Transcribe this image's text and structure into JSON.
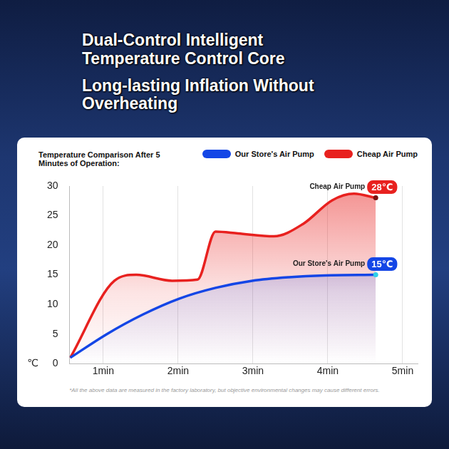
{
  "headline": [
    "Dual-Control Intelligent Temperature Control Core",
    "Long-lasting Inflation Without Overheating"
  ],
  "chart_data": {
    "type": "line",
    "title": "Temperature Comparison After 5 Minutes of Operation:",
    "y_label": "℃",
    "xlim": [
      0.55,
      5.2
    ],
    "xticks": [
      {
        "value": 1,
        "label": "1min"
      },
      {
        "value": 2,
        "label": "2min"
      },
      {
        "value": 3,
        "label": "3min"
      },
      {
        "value": 4,
        "label": "4min"
      },
      {
        "value": 5,
        "label": "5min"
      }
    ],
    "ylim": [
      0,
      30
    ],
    "yticks": [
      0,
      5,
      10,
      15,
      20,
      25,
      30
    ],
    "grid": "x",
    "legend": "top-right",
    "marker": "none",
    "series": [
      {
        "name": "Our Store's Air Pump",
        "color": "#1446e6",
        "x": [
          0.56,
          1.05,
          1.53,
          2.02,
          2.5,
          2.99,
          3.48,
          3.96,
          4.64
        ],
        "values": [
          1,
          5,
          8.3,
          11,
          12.8,
          14,
          14.6,
          14.9,
          15
        ],
        "end_label": "15℃"
      },
      {
        "name": "Cheap Air Pump",
        "color": "#e8211f",
        "x": [
          0.56,
          1.15,
          1.44,
          1.92,
          2.26,
          2.5,
          2.8,
          3.28,
          3.67,
          4.06,
          4.35,
          4.64
        ],
        "values": [
          1,
          14,
          15,
          14,
          14.2,
          22.3,
          22,
          21.5,
          23.6,
          27.6,
          28.7,
          28
        ],
        "end_label": "28℃"
      }
    ],
    "note": "*All the above data are measured in the factory laboratory, but objective environmental changes may cause different errors."
  }
}
